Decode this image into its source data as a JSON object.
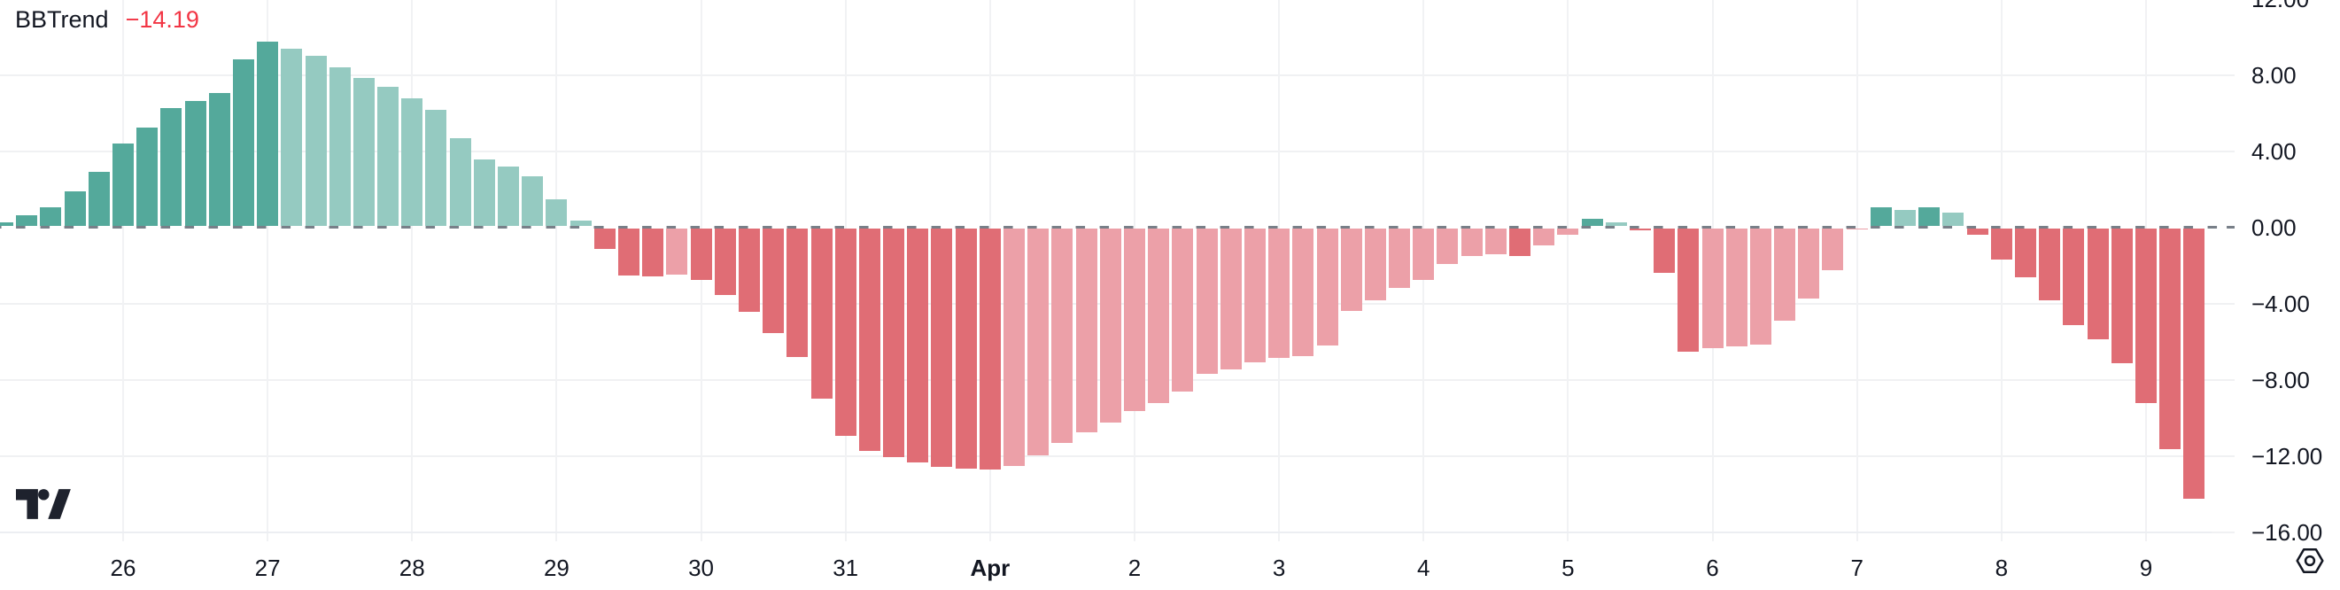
{
  "legend": {
    "indicator_name": "BBTrend",
    "value": "−14.19"
  },
  "colors": {
    "text": "#131722",
    "legend_value": "#F23645",
    "grid": "#F0F1F3",
    "zero_line": "#69717B",
    "state_colors": {
      "u": "#54A99B",
      "uf": "#95CAC1",
      "d": "#E06D75",
      "df": "#ECA0A8"
    },
    "state_legend": {
      "u": "above zero, rising (dark teal)",
      "uf": "above zero, falling (light teal)",
      "d": "below zero, falling (dark red)",
      "df": "below zero, rising (light red)"
    }
  },
  "icons": {
    "logo": "tradingview-logo",
    "settings": "hexagon-gear-icon"
  },
  "chart_data": {
    "type": "bar",
    "title": "BBTrend histogram (4h bars)",
    "current_value": -14.19,
    "grid": true,
    "legend_position": "top-left",
    "y_axis": {
      "side": "right",
      "visible_range": [
        -16.8,
        11.9
      ],
      "ticks": [
        {
          "label": "12.00",
          "value": 12
        },
        {
          "label": "8.00",
          "value": 8
        },
        {
          "label": "4.00",
          "value": 4
        },
        {
          "label": "0.00",
          "value": 0
        },
        {
          "label": "−4.00",
          "value": -4
        },
        {
          "label": "−8.00",
          "value": -8
        },
        {
          "label": "−12.00",
          "value": -12
        },
        {
          "label": "−16.00",
          "value": -16
        }
      ]
    },
    "x_axis": {
      "side": "bottom",
      "ticks": [
        {
          "label": "26",
          "bar_index": 5,
          "bold": false
        },
        {
          "label": "27",
          "bar_index": 11,
          "bold": false
        },
        {
          "label": "28",
          "bar_index": 17,
          "bold": false
        },
        {
          "label": "29",
          "bar_index": 23,
          "bold": false
        },
        {
          "label": "30",
          "bar_index": 29,
          "bold": false
        },
        {
          "label": "31",
          "bar_index": 35,
          "bold": false
        },
        {
          "label": "Apr",
          "bar_index": 41,
          "bold": true
        },
        {
          "label": "2",
          "bar_index": 47,
          "bold": false
        },
        {
          "label": "3",
          "bar_index": 53,
          "bold": false
        },
        {
          "label": "4",
          "bar_index": 59,
          "bold": false
        },
        {
          "label": "5",
          "bar_index": 65,
          "bold": false
        },
        {
          "label": "6",
          "bar_index": 71,
          "bold": false
        },
        {
          "label": "7",
          "bar_index": 77,
          "bold": false
        },
        {
          "label": "8",
          "bar_index": 83,
          "bold": false
        },
        {
          "label": "9",
          "bar_index": 89,
          "bold": false
        }
      ]
    },
    "bars": [
      [
        0.22,
        "u"
      ],
      [
        0.6,
        "u"
      ],
      [
        1.02,
        "u"
      ],
      [
        1.85,
        "u"
      ],
      [
        2.88,
        "u"
      ],
      [
        4.33,
        "u"
      ],
      [
        5.18,
        "u"
      ],
      [
        6.19,
        "u"
      ],
      [
        6.56,
        "u"
      ],
      [
        6.99,
        "u"
      ],
      [
        8.76,
        "u"
      ],
      [
        9.7,
        "u"
      ],
      [
        9.32,
        "uf"
      ],
      [
        8.95,
        "uf"
      ],
      [
        8.35,
        "uf"
      ],
      [
        7.8,
        "uf"
      ],
      [
        7.32,
        "uf"
      ],
      [
        6.74,
        "uf"
      ],
      [
        6.1,
        "uf"
      ],
      [
        4.65,
        "uf"
      ],
      [
        3.53,
        "uf"
      ],
      [
        3.16,
        "uf"
      ],
      [
        2.65,
        "uf"
      ],
      [
        1.4,
        "uf"
      ],
      [
        0.3,
        "uf"
      ],
      [
        -1.1,
        "d"
      ],
      [
        -2.5,
        "d"
      ],
      [
        -2.52,
        "d"
      ],
      [
        -2.45,
        "df"
      ],
      [
        -2.7,
        "d"
      ],
      [
        -3.5,
        "d"
      ],
      [
        -4.4,
        "d"
      ],
      [
        -5.5,
        "d"
      ],
      [
        -6.76,
        "d"
      ],
      [
        -8.95,
        "d"
      ],
      [
        -10.9,
        "d"
      ],
      [
        -11.7,
        "d"
      ],
      [
        -12.0,
        "d"
      ],
      [
        -12.3,
        "d"
      ],
      [
        -12.55,
        "d"
      ],
      [
        -12.65,
        "d"
      ],
      [
        -12.68,
        "d"
      ],
      [
        -12.5,
        "df"
      ],
      [
        -11.95,
        "df"
      ],
      [
        -11.3,
        "df"
      ],
      [
        -10.7,
        "df"
      ],
      [
        -10.2,
        "df"
      ],
      [
        -9.6,
        "df"
      ],
      [
        -9.2,
        "df"
      ],
      [
        -8.56,
        "df"
      ],
      [
        -7.65,
        "df"
      ],
      [
        -7.4,
        "df"
      ],
      [
        -7.05,
        "df"
      ],
      [
        -6.8,
        "df"
      ],
      [
        -6.73,
        "df"
      ],
      [
        -6.15,
        "df"
      ],
      [
        -4.37,
        "df"
      ],
      [
        -3.78,
        "df"
      ],
      [
        -3.13,
        "df"
      ],
      [
        -2.7,
        "df"
      ],
      [
        -1.87,
        "df"
      ],
      [
        -1.45,
        "df"
      ],
      [
        -1.38,
        "df"
      ],
      [
        -1.45,
        "d"
      ],
      [
        -0.92,
        "df"
      ],
      [
        -0.33,
        "df"
      ],
      [
        0.4,
        "u"
      ],
      [
        0.22,
        "uf"
      ],
      [
        -0.1,
        "d"
      ],
      [
        -2.36,
        "d"
      ],
      [
        -6.5,
        "d"
      ],
      [
        -6.3,
        "df"
      ],
      [
        -6.2,
        "df"
      ],
      [
        -6.1,
        "df"
      ],
      [
        -4.86,
        "df"
      ],
      [
        -3.7,
        "df"
      ],
      [
        -2.23,
        "df"
      ],
      [
        -0.05,
        "df"
      ],
      [
        0.98,
        "u"
      ],
      [
        0.88,
        "uf"
      ],
      [
        0.98,
        "u"
      ],
      [
        0.7,
        "uf"
      ],
      [
        -0.33,
        "d"
      ],
      [
        -1.63,
        "d"
      ],
      [
        -2.6,
        "d"
      ],
      [
        -3.77,
        "d"
      ],
      [
        -5.1,
        "d"
      ],
      [
        -5.85,
        "d"
      ],
      [
        -7.1,
        "d"
      ],
      [
        -9.2,
        "d"
      ],
      [
        -11.6,
        "d"
      ],
      [
        -14.19,
        "d"
      ]
    ]
  }
}
